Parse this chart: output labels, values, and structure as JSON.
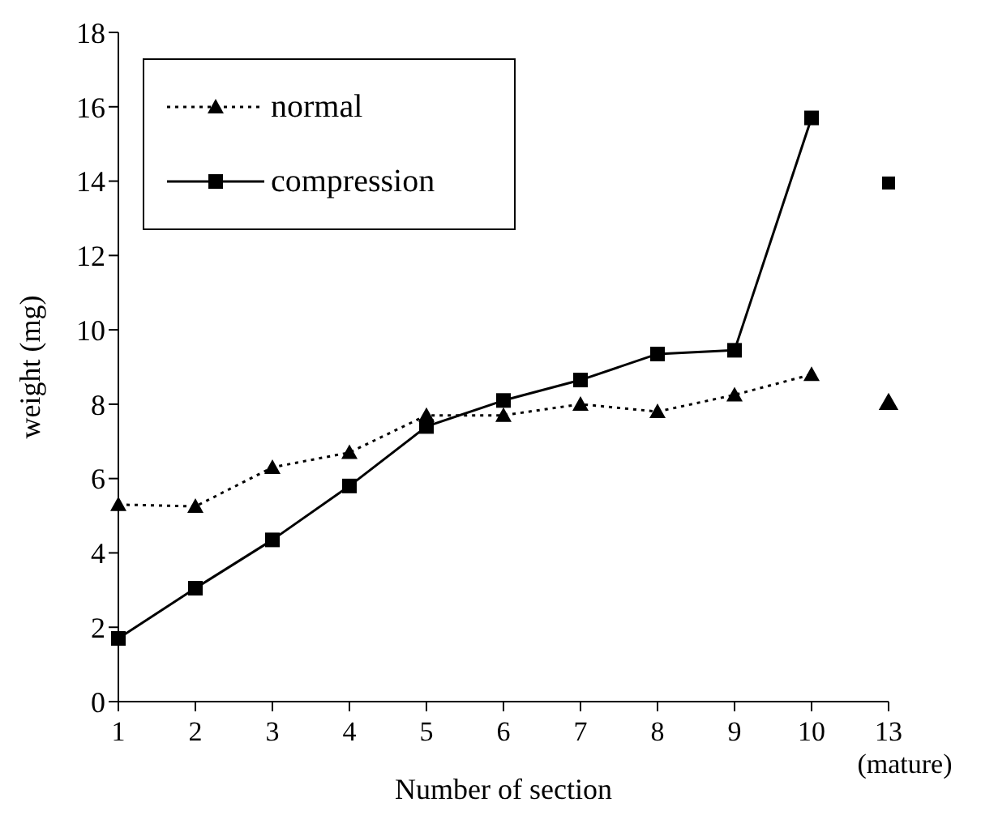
{
  "chart_data": {
    "type": "line",
    "xlabel": "Number of section",
    "ylabel": "weight (mg)",
    "categories": [
      "1",
      "2",
      "3",
      "4",
      "5",
      "6",
      "7",
      "8",
      "9",
      "10",
      "13\n(mature)"
    ],
    "series": [
      {
        "name": "normal",
        "color": "#000000",
        "marker": "triangle",
        "line_style": "dotted",
        "values": [
          5.3,
          5.25,
          6.3,
          6.7,
          7.7,
          7.7,
          8.0,
          7.8,
          8.25,
          8.8,
          null
        ]
      },
      {
        "name": "compression",
        "color": "#000000",
        "marker": "square",
        "line_style": "solid",
        "values": [
          1.7,
          3.05,
          4.35,
          5.8,
          7.4,
          8.1,
          8.65,
          9.35,
          9.45,
          15.7,
          null
        ]
      },
      {
        "type": "scatter",
        "color": "#000000",
        "marker": "triangle",
        "values": [
          null,
          null,
          null,
          null,
          null,
          null,
          null,
          null,
          null,
          null,
          8.0
        ]
      },
      {
        "type": "scatter",
        "color": "#000000",
        "marker": "square",
        "values": [
          null,
          null,
          null,
          null,
          null,
          null,
          null,
          null,
          null,
          null,
          13.95
        ]
      }
    ],
    "ylim": [
      0,
      18
    ],
    "yticks": [
      0,
      2,
      4,
      6,
      8,
      10,
      12,
      14,
      16,
      18
    ],
    "legend": "top left"
  }
}
